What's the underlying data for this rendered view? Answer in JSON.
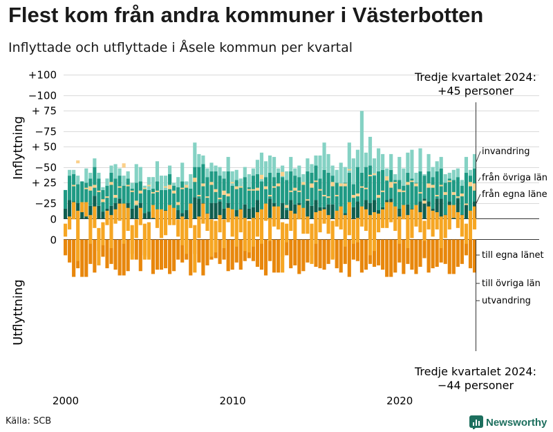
{
  "title": "Flest kom från andra kommuner i Västerbotten",
  "subtitle": "Inflyttade och utflyttade i Åsele kommun per kvartal",
  "source": "Källa: SCB",
  "brand": "Newsworthy",
  "colors": {
    "in_egna": "#0f5e4f",
    "in_ovriga": "#1f9a84",
    "in_invandring": "#85d2c4",
    "out_egna": "#e8870c",
    "out_ovriga": "#f6a623",
    "out_utvandring": "#fbd08a",
    "grid": "#d9d9d9",
    "brand": "#1d6f5e"
  },
  "annotations": {
    "top": {
      "line1": "Tredje kvartalet 2024:",
      "line2": "+45 personer"
    },
    "bottom": {
      "line1": "Tredje kvartalet 2024:",
      "line2": "−44 personer"
    }
  },
  "chart_data": {
    "type": "bar",
    "stacked": true,
    "x_start": 2000,
    "periods_per_year": 4,
    "periods": 99,
    "xticks": [
      "2000",
      "2010",
      "2020"
    ],
    "yticks": [
      {
        "v": 100,
        "label": "+100"
      },
      {
        "v": 75,
        "label": "+ 75"
      },
      {
        "v": 50,
        "label": "+ 50"
      },
      {
        "v": 25,
        "label": "+ 25"
      },
      {
        "v": 0,
        "label": "0"
      },
      {
        "v": -25,
        "label": "−25"
      },
      {
        "v": -50,
        "label": "−50"
      },
      {
        "v": -75,
        "label": "−75"
      },
      {
        "v": -100,
        "label": "−100"
      }
    ],
    "ylim": [
      -100,
      100
    ],
    "top_ylabel": "Inflyttning",
    "bottom_ylabel": "Utflyttning",
    "top_series": [
      {
        "name": "från egna läne",
        "values": [
          7,
          13,
          12,
          11,
          8,
          11,
          9,
          16,
          9,
          5,
          7,
          9,
          11,
          14,
          6,
          11,
          7,
          9,
          11,
          4,
          5,
          6,
          5,
          3,
          6,
          9,
          4,
          6,
          4,
          6,
          5,
          15,
          14,
          11,
          4,
          11,
          11,
          12,
          7,
          11,
          4,
          6,
          7,
          10,
          7,
          8,
          13,
          5,
          9,
          14,
          11,
          7,
          11,
          6,
          13,
          10,
          11,
          4,
          13,
          9,
          13,
          8,
          8,
          10,
          10,
          5,
          7,
          4,
          7,
          8,
          12,
          5,
          13,
          11,
          13,
          6,
          8,
          13,
          14,
          8,
          7,
          4,
          10,
          7,
          4,
          12,
          14,
          12,
          7,
          14,
          14,
          3,
          12,
          7,
          14,
          3,
          10,
          5,
          12
        ]
      },
      {
        "name": "från övriga län",
        "values": [
          13,
          17,
          19,
          13,
          18,
          14,
          19,
          20,
          19,
          15,
          16,
          23,
          17,
          16,
          17,
          17,
          14,
          16,
          15,
          17,
          15,
          15,
          21,
          17,
          14,
          22,
          19,
          16,
          22,
          17,
          16,
          21,
          22,
          27,
          25,
          22,
          22,
          18,
          21,
          22,
          19,
          21,
          15,
          19,
          15,
          22,
          18,
          21,
          20,
          18,
          18,
          25,
          18,
          21,
          20,
          20,
          18,
          21,
          20,
          23,
          24,
          20,
          26,
          22,
          20,
          20,
          17,
          21,
          25,
          16,
          24,
          27,
          23,
          26,
          17,
          27,
          26,
          16,
          20,
          19,
          20,
          19,
          22,
          21,
          21,
          21,
          16,
          21,
          22,
          19,
          21,
          22,
          16,
          20,
          15,
          20,
          22,
          25,
          23
        ]
      },
      {
        "name": "invandring",
        "values": [
          0,
          4,
          3,
          6,
          0,
          10,
          4,
          6,
          4,
          2,
          5,
          5,
          10,
          5,
          7,
          5,
          4,
          13,
          10,
          2,
          9,
          8,
          14,
          10,
          10,
          6,
          2,
          7,
          13,
          3,
          10,
          17,
          9,
          6,
          6,
          6,
          4,
          6,
          5,
          10,
          10,
          7,
          6,
          7,
          9,
          5,
          10,
          20,
          11,
          12,
          14,
          3,
          8,
          6,
          10,
          5,
          8,
          6,
          9,
          6,
          7,
          16,
          19,
          13,
          7,
          9,
          15,
          11,
          21,
          18,
          12,
          43,
          10,
          20,
          12,
          16,
          11,
          6,
          11,
          4,
          16,
          12,
          14,
          20,
          7,
          16,
          1,
          12,
          7,
          7,
          8,
          6,
          4,
          7,
          6,
          4,
          11,
          4,
          10
        ]
      }
    ],
    "bottom_series": [
      {
        "name": "till egna länet",
        "values": [
          11,
          16,
          26,
          20,
          26,
          26,
          17,
          23,
          8,
          12,
          20,
          17,
          21,
          25,
          25,
          22,
          10,
          14,
          22,
          11,
          12,
          24,
          21,
          21,
          20,
          24,
          22,
          14,
          16,
          14,
          25,
          10,
          16,
          25,
          18,
          14,
          13,
          17,
          14,
          22,
          21,
          16,
          21,
          15,
          13,
          15,
          19,
          21,
          25,
          15,
          23,
          23,
          12,
          11,
          20,
          18,
          24,
          22,
          16,
          11,
          19,
          20,
          21,
          17,
          13,
          20,
          23,
          17,
          26,
          14,
          15,
          23,
          21,
          17,
          19,
          18,
          21,
          26,
          26,
          23,
          16,
          24,
          17,
          21,
          24,
          19,
          13,
          23,
          20,
          19,
          16,
          17,
          24,
          24,
          19,
          17,
          11,
          20,
          23
        ]
      },
      {
        "name": "till övriga län",
        "values": [
          9,
          9,
          12,
          35,
          7,
          10,
          20,
          15,
          26,
          16,
          10,
          23,
          10,
          12,
          28,
          16,
          24,
          13,
          12,
          25,
          26,
          9,
          13,
          20,
          17,
          14,
          12,
          12,
          20,
          24,
          17,
          33,
          15,
          14,
          12,
          26,
          22,
          12,
          20,
          10,
          19,
          21,
          16,
          23,
          22,
          20,
          17,
          24,
          12,
          16,
          14,
          16,
          35,
          13,
          14,
          18,
          10,
          18,
          12,
          28,
          22,
          15,
          10,
          13,
          27,
          11,
          16,
          22,
          23,
          17,
          17,
          14,
          15,
          28,
          27,
          13,
          13,
          18,
          14,
          17,
          19,
          10,
          23,
          20,
          15,
          14,
          14,
          16,
          18,
          12,
          22,
          16,
          17,
          9,
          11,
          15,
          14,
          20,
          16
        ]
      },
      {
        "name": "utvandring",
        "values": [
          0,
          0,
          1,
          2,
          0,
          1,
          3,
          2,
          1,
          2,
          1,
          2,
          2,
          1,
          3,
          1,
          1,
          3,
          2,
          1,
          1,
          1,
          1,
          0,
          1,
          3,
          2,
          2,
          1,
          2,
          0,
          3,
          1,
          2,
          1,
          2,
          2,
          1,
          3,
          2,
          1,
          2,
          1,
          0,
          1,
          1,
          2,
          3,
          2,
          1,
          1,
          2,
          3,
          2,
          1,
          2,
          1,
          2,
          1,
          3,
          1,
          1,
          1,
          1,
          3,
          1,
          2,
          2,
          1,
          2,
          2,
          1,
          1,
          1,
          1,
          2,
          1,
          3,
          4,
          1,
          2,
          1,
          2,
          1,
          2,
          1,
          2,
          3,
          2,
          1,
          1,
          2,
          1,
          2,
          1,
          2,
          1,
          3,
          5
        ]
      }
    ],
    "top_legend": [
      "invandring",
      "från övriga län",
      "från egna läne"
    ],
    "bottom_legend": [
      "till egna länet",
      "till övriga län",
      "utvandring"
    ]
  }
}
